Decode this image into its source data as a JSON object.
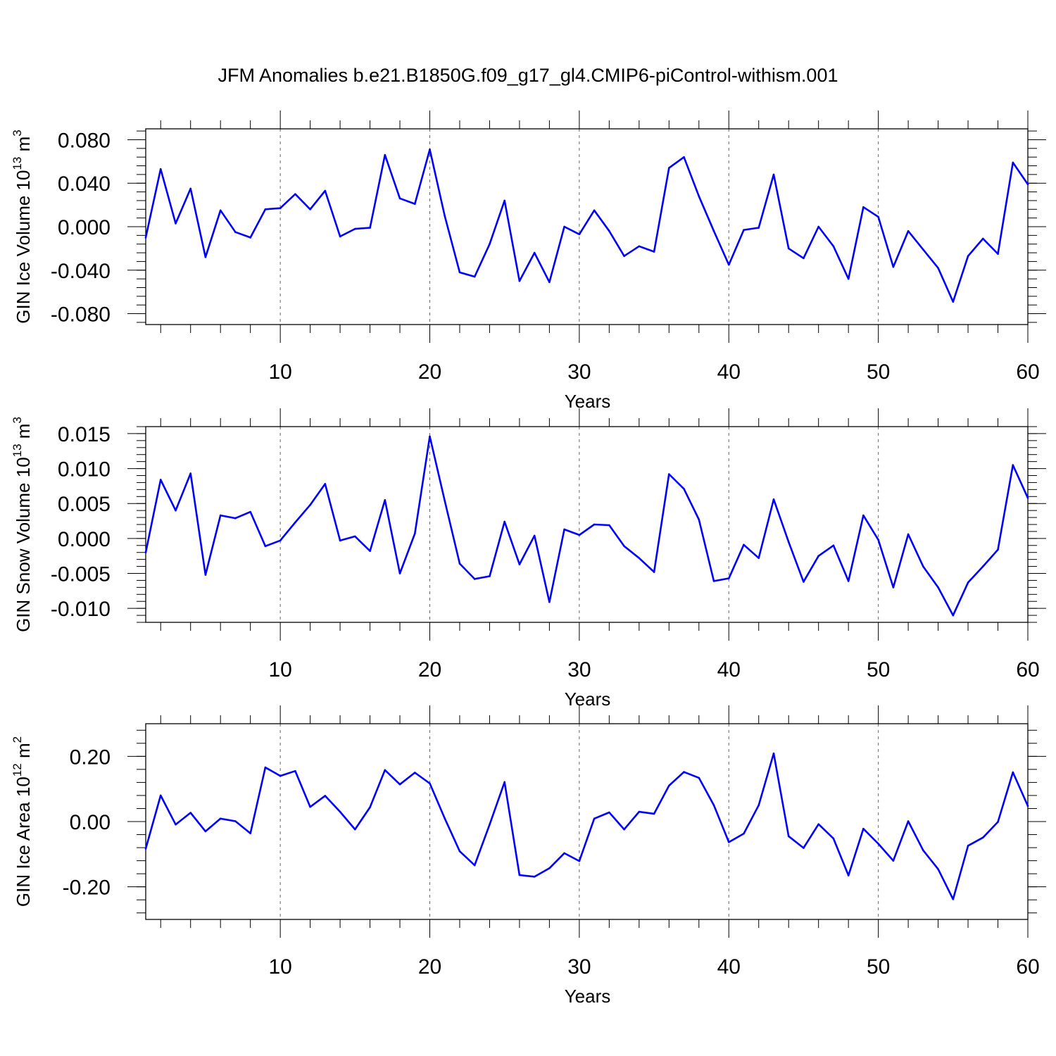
{
  "chart_data": [
    {
      "type": "line",
      "title": "JFM Anomalies b.e21.B1850G.f09_g17_gl4.CMIP6-piControl-withism.001",
      "xlabel": "Years",
      "ylabel": {
        "base": "GIN Ice Volume 10",
        "exp": "13",
        "unit": " m",
        "unit_exp": "3"
      },
      "xlim": [
        1,
        60
      ],
      "ylim": [
        -0.09,
        0.09
      ],
      "yticks": [
        -0.08,
        -0.04,
        0.0,
        0.04,
        0.08
      ],
      "ytick_labels": [
        "-0.080",
        "-0.040",
        "0.000",
        "0.040",
        "0.080"
      ],
      "xticks": [
        10,
        20,
        30,
        40,
        50,
        60
      ],
      "xtick_labels": [
        "10",
        "20",
        "30",
        "40",
        "50",
        "60"
      ],
      "gridlines_x": [
        10,
        20,
        30,
        40,
        50
      ],
      "color": "#0000ff",
      "x": [
        1,
        2,
        3,
        4,
        5,
        6,
        7,
        8,
        9,
        10,
        11,
        12,
        13,
        14,
        15,
        16,
        17,
        18,
        19,
        20,
        21,
        22,
        23,
        24,
        25,
        26,
        27,
        28,
        29,
        30,
        31,
        32,
        33,
        34,
        35,
        36,
        37,
        38,
        39,
        40,
        41,
        42,
        43,
        44,
        45,
        46,
        47,
        48,
        49,
        50,
        51,
        52,
        53,
        54,
        55,
        56,
        57,
        58,
        59,
        60
      ],
      "values": [
        -0.01,
        0.053,
        0.003,
        0.035,
        -0.028,
        0.015,
        -0.005,
        -0.01,
        0.016,
        0.017,
        0.03,
        0.016,
        0.033,
        -0.009,
        -0.002,
        -0.001,
        0.066,
        0.026,
        0.021,
        0.071,
        0.01,
        -0.042,
        -0.046,
        -0.016,
        0.024,
        -0.05,
        -0.024,
        -0.051,
        0.0,
        -0.007,
        0.015,
        -0.004,
        -0.027,
        -0.018,
        -0.023,
        0.054,
        0.064,
        0.028,
        -0.004,
        -0.035,
        -0.003,
        -0.001,
        0.048,
        -0.02,
        -0.029,
        0.0,
        -0.018,
        -0.048,
        0.018,
        0.009,
        -0.037,
        -0.004,
        -0.021,
        -0.038,
        -0.069,
        -0.027,
        -0.011,
        -0.025,
        0.059,
        0.039
      ]
    },
    {
      "type": "line",
      "title": "",
      "xlabel": "Years",
      "ylabel": {
        "base": "GIN Snow Volume 10",
        "exp": "13",
        "unit": " m",
        "unit_exp": "3"
      },
      "xlim": [
        1,
        60
      ],
      "ylim": [
        -0.012,
        0.016
      ],
      "yticks": [
        -0.01,
        -0.005,
        0.0,
        0.005,
        0.01,
        0.015
      ],
      "ytick_labels": [
        "-0.010",
        "-0.005",
        "0.000",
        "0.005",
        "0.010",
        "0.015"
      ],
      "xticks": [
        10,
        20,
        30,
        40,
        50,
        60
      ],
      "xtick_labels": [
        "10",
        "20",
        "30",
        "40",
        "50",
        "60"
      ],
      "gridlines_x": [
        10,
        20,
        30,
        40,
        50
      ],
      "color": "#0000ff",
      "x": [
        1,
        2,
        3,
        4,
        5,
        6,
        7,
        8,
        9,
        10,
        11,
        12,
        13,
        14,
        15,
        16,
        17,
        18,
        19,
        20,
        21,
        22,
        23,
        24,
        25,
        26,
        27,
        28,
        29,
        30,
        31,
        32,
        33,
        34,
        35,
        36,
        37,
        38,
        39,
        40,
        41,
        42,
        43,
        44,
        45,
        46,
        47,
        48,
        49,
        50,
        51,
        52,
        53,
        54,
        55,
        56,
        57,
        58,
        59,
        60
      ],
      "values": [
        -0.002,
        0.0084,
        0.004,
        0.0093,
        -0.0052,
        0.0033,
        0.0029,
        0.0038,
        -0.0011,
        -0.0003,
        0.0023,
        0.0048,
        0.0078,
        -0.0003,
        0.0003,
        -0.0018,
        0.0055,
        -0.005,
        0.0007,
        0.0146,
        0.0054,
        -0.0036,
        -0.0058,
        -0.0054,
        0.0024,
        -0.0037,
        0.0004,
        -0.0091,
        0.0013,
        0.0005,
        0.002,
        0.0019,
        -0.0011,
        -0.0028,
        -0.0048,
        0.0092,
        0.0071,
        0.0027,
        -0.0061,
        -0.0057,
        -0.0009,
        -0.0028,
        0.0056,
        -0.0005,
        -0.0062,
        -0.0025,
        -0.001,
        -0.0061,
        0.0033,
        -0.0002,
        -0.007,
        0.0006,
        -0.004,
        -0.007,
        -0.011,
        -0.0063,
        -0.004,
        -0.0016,
        0.0105,
        0.0058
      ]
    },
    {
      "type": "line",
      "title": "",
      "xlabel": "Years",
      "ylabel": {
        "base": "GIN Ice Area 10",
        "exp": "12",
        "unit": " m",
        "unit_exp": "2"
      },
      "xlim": [
        1,
        60
      ],
      "ylim": [
        -0.3,
        0.3
      ],
      "yticks": [
        -0.2,
        0.0,
        0.2
      ],
      "ytick_labels": [
        "-0.20",
        "0.00",
        "0.20"
      ],
      "xticks": [
        10,
        20,
        30,
        40,
        50,
        60
      ],
      "xtick_labels": [
        "10",
        "20",
        "30",
        "40",
        "50",
        "60"
      ],
      "gridlines_x": [
        10,
        20,
        30,
        40,
        50
      ],
      "color": "#0000ff",
      "x": [
        1,
        2,
        3,
        4,
        5,
        6,
        7,
        8,
        9,
        10,
        11,
        12,
        13,
        14,
        15,
        16,
        17,
        18,
        19,
        20,
        21,
        22,
        23,
        24,
        25,
        26,
        27,
        28,
        29,
        30,
        31,
        32,
        33,
        34,
        35,
        36,
        37,
        38,
        39,
        40,
        41,
        42,
        43,
        44,
        45,
        46,
        47,
        48,
        49,
        50,
        51,
        52,
        53,
        54,
        55,
        56,
        57,
        58,
        59,
        60
      ],
      "values": [
        -0.083,
        0.08,
        -0.009,
        0.027,
        -0.03,
        0.009,
        0.001,
        -0.036,
        0.166,
        0.14,
        0.155,
        0.045,
        0.079,
        0.03,
        -0.024,
        0.044,
        0.158,
        0.114,
        0.15,
        0.117,
        0.01,
        -0.091,
        -0.134,
        -0.009,
        0.121,
        -0.164,
        -0.169,
        -0.143,
        -0.097,
        -0.121,
        0.009,
        0.028,
        -0.024,
        0.03,
        0.024,
        0.11,
        0.152,
        0.134,
        0.05,
        -0.063,
        -0.037,
        0.05,
        0.209,
        -0.045,
        -0.081,
        -0.008,
        -0.052,
        -0.165,
        -0.022,
        -0.068,
        -0.12,
        0.001,
        -0.088,
        -0.146,
        -0.238,
        -0.074,
        -0.049,
        -0.001,
        0.151,
        0.048
      ]
    }
  ]
}
